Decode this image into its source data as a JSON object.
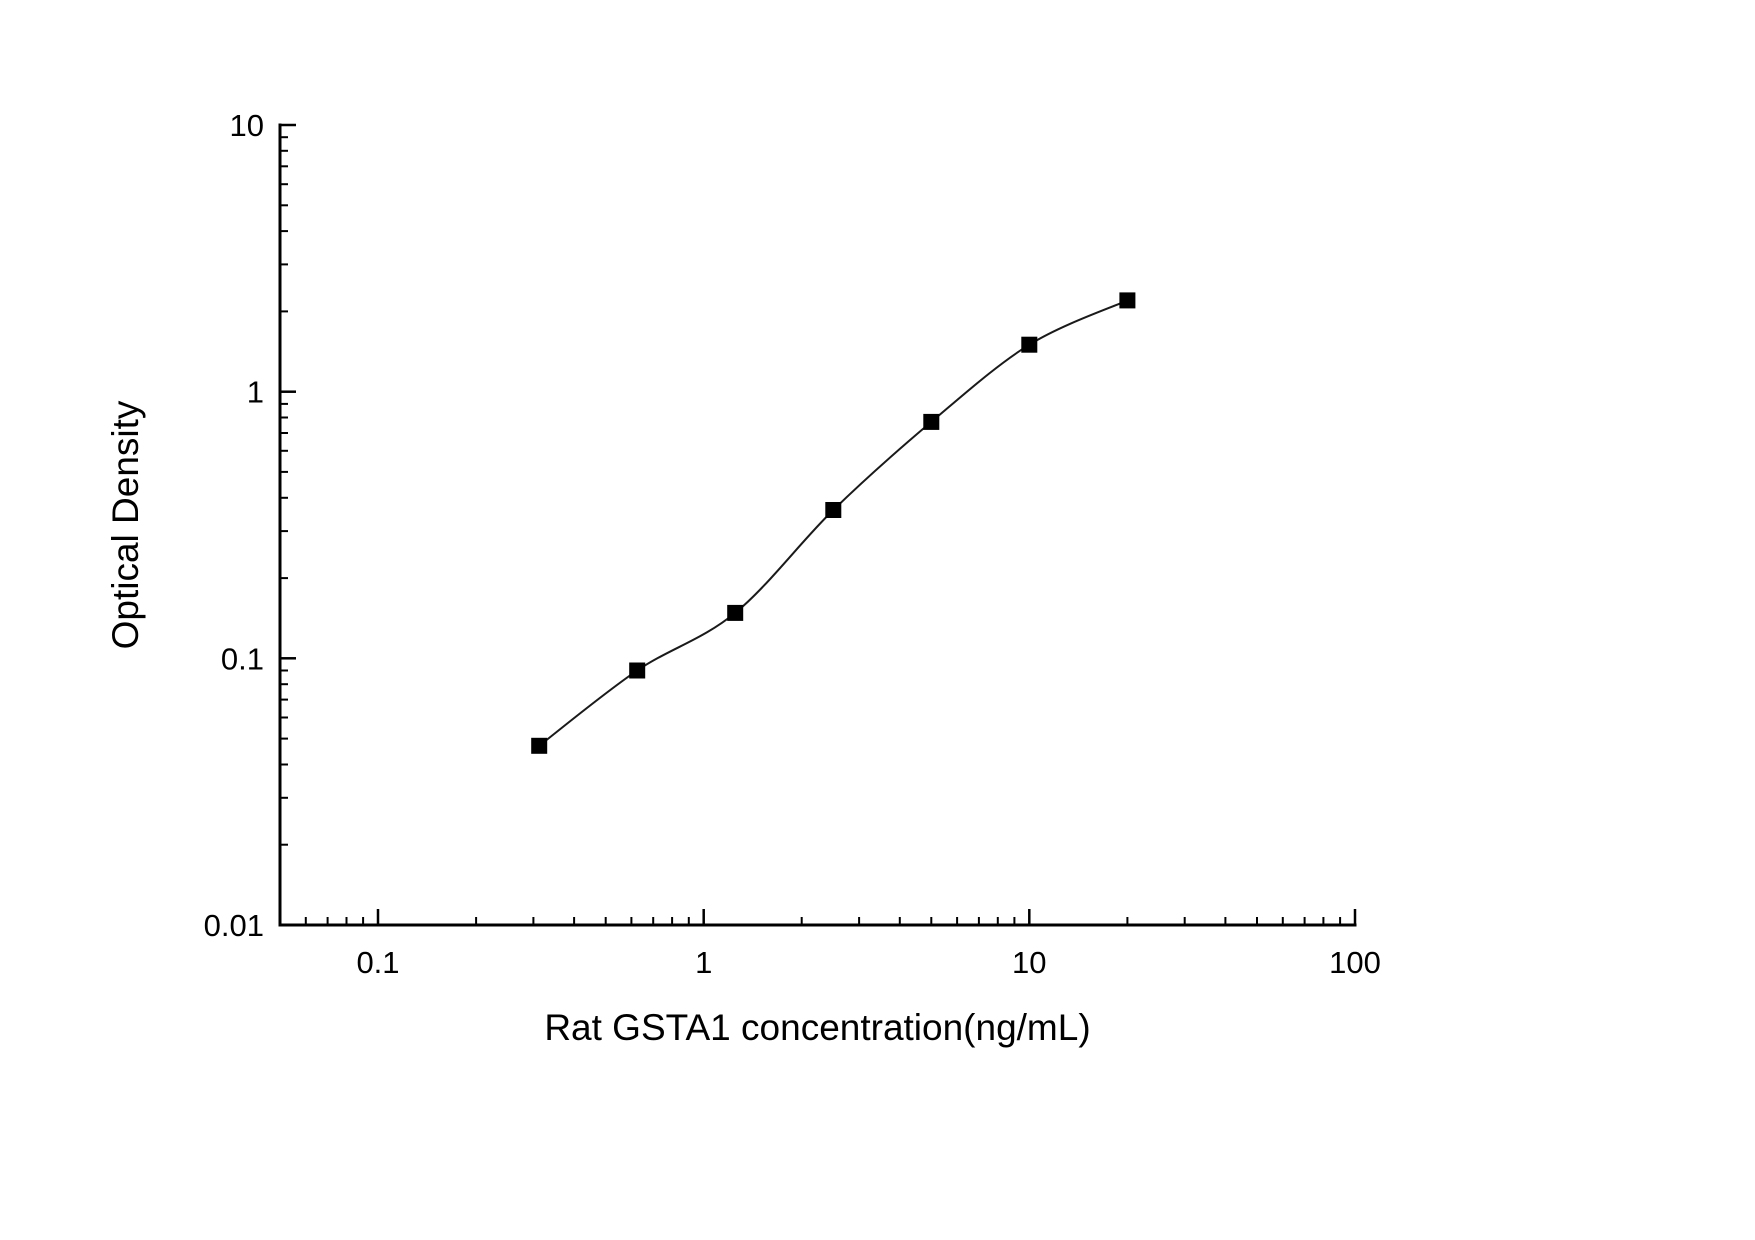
{
  "figure": {
    "background": "#ffffff",
    "ink_color": "#000000"
  },
  "chart_data": {
    "type": "scatter",
    "title": "",
    "xlabel": "Rat GSTA1 concentration(ng/mL)",
    "ylabel": "Optical Density",
    "x_scale": "log",
    "y_scale": "log",
    "xlim": [
      0.05,
      100
    ],
    "ylim": [
      0.01,
      10
    ],
    "x_ticks": [
      0.1,
      1,
      10,
      100
    ],
    "x_tick_labels": [
      "0.1",
      "1",
      "10",
      "100"
    ],
    "y_ticks": [
      0.01,
      0.1,
      1,
      10
    ],
    "y_tick_labels": [
      "0.01",
      "0.1",
      "1",
      "10"
    ],
    "grid": false,
    "legend": false,
    "series": [
      {
        "x": [
          0.3125,
          0.625,
          1.25,
          2.5,
          5,
          10,
          20
        ],
        "y": [
          0.047,
          0.09,
          0.148,
          0.36,
          0.77,
          1.5,
          2.2
        ],
        "marker": "filled-square",
        "marker_color": "#000000",
        "line_color": "#1a1a1a",
        "fit": "smooth-sigmoid"
      }
    ]
  }
}
